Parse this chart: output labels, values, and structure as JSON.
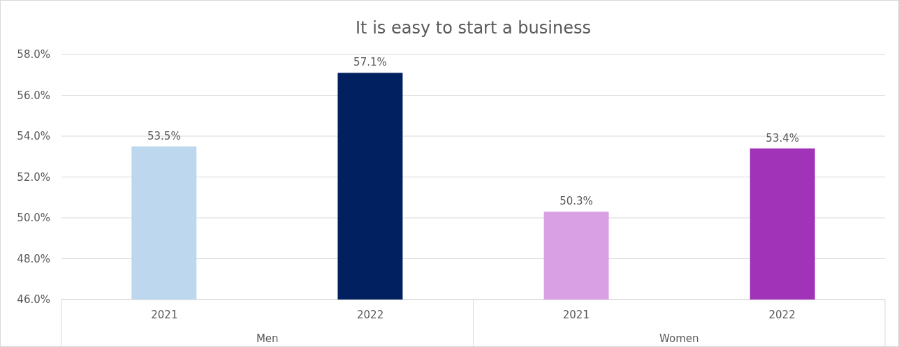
{
  "chart_data": {
    "type": "bar",
    "title": "It is easy to start a business",
    "categories": [
      "2021",
      "2022",
      "2021",
      "2022"
    ],
    "values": [
      53.5,
      57.1,
      50.3,
      53.4
    ],
    "colors": [
      "#bdd7ee",
      "#002060",
      "#d9a0e3",
      "#a033b7"
    ],
    "value_labels": [
      "53.5%",
      "57.1%",
      "50.3%",
      "53.4%"
    ],
    "annotations": [
      "Men",
      "Women"
    ],
    "ylim": [
      46,
      58
    ],
    "yticks": [
      {
        "value": 46,
        "label": "46.0%"
      },
      {
        "value": 48,
        "label": "48.0%"
      },
      {
        "value": 50,
        "label": "50.0%"
      },
      {
        "value": 52,
        "label": "52.0%"
      },
      {
        "value": 54,
        "label": "54.0%"
      },
      {
        "value": 56,
        "label": "56.0%"
      },
      {
        "value": 58,
        "label": "58.0%"
      }
    ],
    "grid": "y"
  }
}
